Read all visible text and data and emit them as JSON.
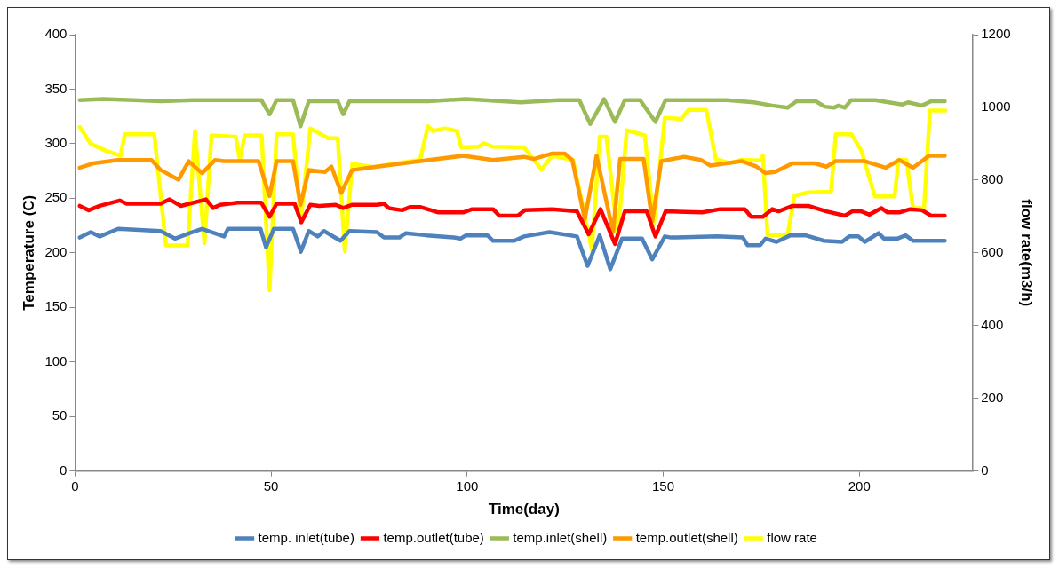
{
  "chart_data": {
    "type": "line",
    "xlabel": "Time(day)",
    "ylabel": "Temperature (C)",
    "y2label": "flow rate(m3/h)",
    "xlim": [
      0,
      229
    ],
    "xticks": [
      0,
      50,
      100,
      150,
      200
    ],
    "ylim": [
      0,
      400
    ],
    "yticks": [
      0,
      50,
      100,
      150,
      200,
      250,
      300,
      350,
      400
    ],
    "y2lim": [
      0,
      1200
    ],
    "y2ticks": [
      0,
      200,
      400,
      600,
      800,
      1000,
      1200
    ],
    "grid": false,
    "legend": "bottom",
    "marker": "none",
    "line_style": "solid",
    "series": [
      {
        "name": "temp. inlet(tube)",
        "color": "#4f81bd",
        "x": [
          1.2,
          4,
          6.3,
          11,
          21.8,
          25.5,
          30,
          32.4,
          38,
          39,
          47.3,
          48.7,
          50.7,
          55.6,
          57.6,
          59.6,
          61.9,
          63.5,
          67.7,
          70,
          77,
          78.8,
          82.7,
          84.4,
          89.7,
          96.6,
          98.3,
          99.7,
          105.2,
          106.6,
          112,
          114.5,
          121,
          128,
          130.7,
          133.8,
          136.5,
          139.5,
          144.6,
          147.2,
          150.4,
          152,
          163.8,
          170.3,
          171.5,
          174.7,
          176.1,
          178.9,
          182.4,
          186.3,
          191,
          195.6,
          197.4,
          199.8,
          201.4,
          204.9,
          206.3,
          209.7,
          211.8,
          213.7,
          221.8
        ],
        "values": [
          214,
          219,
          215,
          222,
          220,
          213,
          219,
          222,
          215,
          222,
          222,
          205,
          222,
          222,
          201,
          220,
          215,
          220,
          211,
          220,
          219,
          214,
          214,
          218,
          216,
          214,
          213,
          216,
          216,
          211,
          211,
          215,
          219,
          215,
          188,
          216,
          185,
          213,
          213,
          194,
          215,
          214,
          215,
          214,
          207,
          207,
          213,
          210,
          216,
          216,
          211,
          210,
          215,
          215,
          210,
          218,
          213,
          213,
          216,
          211,
          211
        ]
      },
      {
        "name": "temp.outlet(tube)",
        "color": "#ff0000",
        "x": [
          1.2,
          3.5,
          6.3,
          11.4,
          13.2,
          21.8,
          24.1,
          27,
          33.4,
          35.2,
          37,
          41.5,
          47.5,
          49.6,
          51.4,
          56,
          57.7,
          60,
          62.3,
          66.5,
          68.4,
          70.7,
          77,
          78.8,
          80,
          83.4,
          85.5,
          88,
          92.7,
          99,
          101.3,
          106.6,
          108.2,
          112.9,
          114.7,
          121.7,
          128,
          131,
          134,
          137.7,
          140.2,
          145.8,
          148,
          150.6,
          160,
          164.5,
          170.8,
          172.4,
          175.4,
          177.8,
          179.4,
          183,
          187,
          191.6,
          196.3,
          198.2,
          200.5,
          202.6,
          205.6,
          207.2,
          210.2,
          213,
          216,
          218.3,
          221.8
        ],
        "values": [
          243,
          239,
          243,
          248,
          245,
          245,
          249,
          243,
          249,
          241,
          244,
          246,
          246,
          233,
          245,
          245,
          228,
          244,
          243,
          244,
          241,
          244,
          244,
          245,
          241,
          239,
          242,
          242,
          237,
          237,
          240,
          240,
          234,
          234,
          239,
          240,
          238,
          217,
          240,
          208,
          238,
          238,
          215,
          238,
          237,
          240,
          240,
          233,
          233,
          240,
          238,
          243,
          243,
          238,
          234,
          238,
          238,
          235,
          241,
          237,
          237,
          240,
          239,
          234,
          234
        ]
      },
      {
        "name": "temp.inlet(shell)",
        "color": "#9bbb59",
        "x": [
          1.2,
          7,
          15,
          22,
          30,
          38,
          47.5,
          49.6,
          51.4,
          55.6,
          57.5,
          59.6,
          67,
          68.4,
          70,
          80,
          90,
          99.7,
          113.6,
          123.3,
          128.6,
          131.4,
          134.9,
          137.7,
          140.2,
          144.1,
          148,
          150.6,
          166.2,
          173.1,
          177.8,
          181.7,
          184,
          188.9,
          191.2,
          193.5,
          194.7,
          196.3,
          197.9,
          204,
          211,
          212.5,
          216,
          218.3,
          221.8
        ],
        "values": [
          340,
          341,
          340,
          339,
          340,
          340,
          340,
          327,
          340,
          340,
          316,
          339,
          339,
          327,
          339,
          339,
          339,
          341,
          338,
          340,
          340,
          318,
          341,
          320,
          340,
          340,
          320,
          340,
          340,
          338,
          335,
          333,
          339,
          339,
          334,
          333,
          335,
          333,
          340,
          340,
          336,
          338,
          335,
          339,
          339
        ]
      },
      {
        "name": "temp.outlet(shell)",
        "color": "#ff9900",
        "x": [
          1.2,
          4.6,
          11,
          19.5,
          21.8,
          26.4,
          29,
          32.4,
          35.7,
          38,
          46.8,
          49.6,
          51.4,
          55.6,
          57.5,
          59.6,
          63.7,
          65.4,
          67.9,
          70.7,
          77,
          88,
          99,
          106.6,
          114.5,
          117,
          121.7,
          124.9,
          126.8,
          130,
          133,
          137.2,
          139,
          145,
          147.2,
          149.5,
          155.3,
          159.7,
          162,
          170.1,
          173.8,
          176.1,
          178.4,
          183,
          188.6,
          191.6,
          194,
          201.4,
          206.7,
          210.2,
          213.7,
          217.8,
          221.8
        ],
        "values": [
          278,
          282,
          285,
          285,
          276,
          267,
          284,
          273,
          285,
          284,
          284,
          252,
          284,
          284,
          244,
          276,
          274,
          279,
          255,
          276,
          279,
          284,
          289,
          285,
          288,
          286,
          291,
          291,
          285,
          231,
          289,
          219,
          286,
          286,
          229,
          284,
          288,
          285,
          280,
          284,
          279,
          273,
          274,
          282,
          282,
          279,
          284,
          284,
          278,
          285,
          278,
          289,
          289
        ]
      },
      {
        "name": "flow rate",
        "color": "#ffff00",
        "axis": "y2",
        "x": [
          1.2,
          4,
          8,
          11.6,
          12.7,
          20.2,
          23.2,
          28.7,
          30.6,
          33,
          34.8,
          41,
          42,
          43.3,
          47.6,
          49.6,
          51.4,
          55.6,
          57.6,
          60,
          64.6,
          67,
          68.8,
          70.7,
          76,
          88,
          90,
          91.3,
          94.3,
          97.4,
          98.5,
          103,
          104.3,
          106.4,
          114.5,
          119,
          121.7,
          127,
          131.8,
          133.8,
          135.5,
          138.4,
          140.7,
          145.3,
          147.6,
          150.4,
          154.6,
          156.4,
          161,
          163.4,
          166.9,
          170.1,
          174.7,
          175.4,
          176.6,
          181.7,
          183.5,
          187,
          192.8,
          194,
          198,
          200.5,
          204,
          209,
          210,
          212,
          213.7,
          216.5,
          218,
          222
        ],
        "values": [
          946,
          900,
          880,
          867,
          926,
          926,
          620,
          620,
          935,
          627,
          923,
          919,
          856,
          923,
          923,
          497,
          926,
          926,
          688,
          942,
          915,
          915,
          604,
          845,
          836,
          856,
          948,
          935,
          942,
          935,
          890,
          892,
          901,
          892,
          890,
          829,
          867,
          856,
          609,
          919,
          919,
          645,
          937,
          923,
          679,
          971,
          968,
          993,
          993,
          858,
          847,
          856,
          854,
          867,
          649,
          649,
          757,
          766,
          768,
          926,
          926,
          881,
          755,
          755,
          856,
          856,
          723,
          723,
          991,
          991
        ]
      }
    ]
  }
}
